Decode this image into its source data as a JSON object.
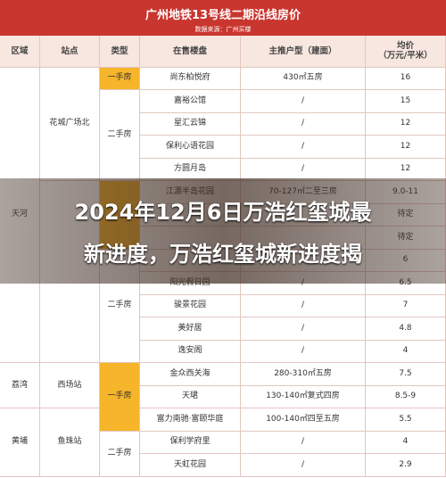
{
  "header": {
    "title": "广州地铁13号线二期沿线房价",
    "subtitle": "数据来源：广州买楼"
  },
  "columns": [
    "区域",
    "站点",
    "类型",
    "在售楼盘",
    "主推户型（建面）",
    "均价"
  ],
  "price_unit": "（万元/平米）",
  "districts": [
    "天河",
    "荔湾",
    "黄埔"
  ],
  "stations": [
    "花城广场北",
    "西场站",
    "鱼珠站"
  ],
  "types": [
    "一手房",
    "二手房",
    "二手房",
    "一手房",
    "二手房"
  ],
  "rows": [
    {
      "name": "尚东柏悦府",
      "layout": "430㎡五房",
      "price": "16"
    },
    {
      "name": "嘉裕公馆",
      "layout": "/",
      "price": "15"
    },
    {
      "name": "星汇云锦",
      "layout": "/",
      "price": "12"
    },
    {
      "name": "保利心语花园",
      "layout": "/",
      "price": "12"
    },
    {
      "name": "方圆月岛",
      "layout": "/",
      "price": "12"
    },
    {
      "name": "江源半岛花园",
      "layout": "70-127㎡二至三房",
      "price": "9.0-11"
    },
    {
      "price": "待定"
    },
    {
      "price": "待定"
    },
    {
      "price": "6"
    },
    {
      "name": "阳光假日园",
      "layout": "/",
      "price": "6.5"
    },
    {
      "name": "骏景花园",
      "layout": "/",
      "price": "7"
    },
    {
      "name": "美好居",
      "layout": "/",
      "price": "4.8"
    },
    {
      "name": "逸安阁",
      "layout": "/",
      "price": "4"
    },
    {
      "name": "金众西关海",
      "layout": "280-310㎡五房",
      "price": "7.5"
    },
    {
      "name": "天珺",
      "layout": "130-140㎡复式四房",
      "price": "8.5-9"
    },
    {
      "name": "富力南驰·富颐华庭",
      "layout": "100-140㎡四至五房",
      "price": "5.5"
    },
    {
      "name": "保利学府里",
      "layout": "/",
      "price": "4"
    },
    {
      "name": "天虹花园",
      "layout": "/",
      "price": "2.9"
    }
  ],
  "overlay": {
    "lines": [
      "2024年12月6日万浩红玺城最",
      "新进度，万浩红玺城新进度揭"
    ]
  }
}
